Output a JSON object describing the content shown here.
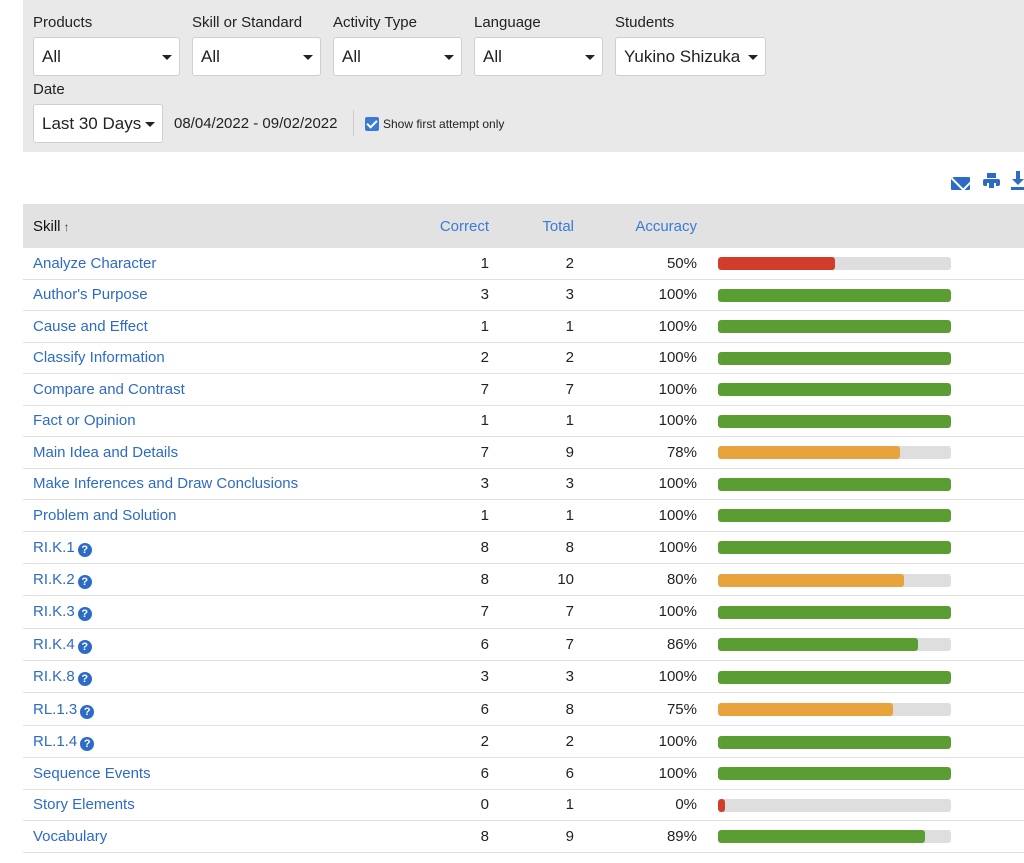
{
  "filters": {
    "products": {
      "label": "Products",
      "value": "All"
    },
    "skill": {
      "label": "Skill or Standard",
      "value": "All"
    },
    "activity": {
      "label": "Activity Type",
      "value": "All"
    },
    "language": {
      "label": "Language",
      "value": "All"
    },
    "students": {
      "label": "Students",
      "value": "Yukino Shizuka"
    },
    "date": {
      "label": "Date",
      "value": "Last 30 Days",
      "range": "08/04/2022 - 09/02/2022"
    },
    "first_attempt": {
      "label": "Show first attempt only",
      "checked": true
    }
  },
  "toolbar": {
    "icons": [
      "mail-icon",
      "print-icon",
      "download-icon"
    ]
  },
  "colors": {
    "accent": "#2d6bc5",
    "bar_green": "#5a9e33",
    "bar_orange": "#e8a33d",
    "bar_red": "#d23c2a",
    "bar_track": "#dedede"
  },
  "table": {
    "headers": {
      "skill": "Skill",
      "correct": "Correct",
      "total": "Total",
      "accuracy": "Accuracy"
    },
    "rows": [
      {
        "skill": "Analyze Character",
        "help": false,
        "correct": "1",
        "total": "2",
        "accuracy": "50%",
        "pct": 50,
        "color": "red"
      },
      {
        "skill": "Author's Purpose",
        "help": false,
        "correct": "3",
        "total": "3",
        "accuracy": "100%",
        "pct": 100,
        "color": "green"
      },
      {
        "skill": "Cause and Effect",
        "help": false,
        "correct": "1",
        "total": "1",
        "accuracy": "100%",
        "pct": 100,
        "color": "green"
      },
      {
        "skill": "Classify Information",
        "help": false,
        "correct": "2",
        "total": "2",
        "accuracy": "100%",
        "pct": 100,
        "color": "green"
      },
      {
        "skill": "Compare and Contrast",
        "help": false,
        "correct": "7",
        "total": "7",
        "accuracy": "100%",
        "pct": 100,
        "color": "green"
      },
      {
        "skill": "Fact or Opinion",
        "help": false,
        "correct": "1",
        "total": "1",
        "accuracy": "100%",
        "pct": 100,
        "color": "green"
      },
      {
        "skill": "Main Idea and Details",
        "help": false,
        "correct": "7",
        "total": "9",
        "accuracy": "78%",
        "pct": 78,
        "color": "orange"
      },
      {
        "skill": "Make Inferences and Draw Conclusions",
        "help": false,
        "correct": "3",
        "total": "3",
        "accuracy": "100%",
        "pct": 100,
        "color": "green"
      },
      {
        "skill": "Problem and Solution",
        "help": false,
        "correct": "1",
        "total": "1",
        "accuracy": "100%",
        "pct": 100,
        "color": "green"
      },
      {
        "skill": "RI.K.1",
        "help": true,
        "correct": "8",
        "total": "8",
        "accuracy": "100%",
        "pct": 100,
        "color": "green"
      },
      {
        "skill": "RI.K.2",
        "help": true,
        "correct": "8",
        "total": "10",
        "accuracy": "80%",
        "pct": 80,
        "color": "orange"
      },
      {
        "skill": "RI.K.3",
        "help": true,
        "correct": "7",
        "total": "7",
        "accuracy": "100%",
        "pct": 100,
        "color": "green"
      },
      {
        "skill": "RI.K.4",
        "help": true,
        "correct": "6",
        "total": "7",
        "accuracy": "86%",
        "pct": 86,
        "color": "green"
      },
      {
        "skill": "RI.K.8",
        "help": true,
        "correct": "3",
        "total": "3",
        "accuracy": "100%",
        "pct": 100,
        "color": "green"
      },
      {
        "skill": "RL.1.3",
        "help": true,
        "correct": "6",
        "total": "8",
        "accuracy": "75%",
        "pct": 75,
        "color": "orange"
      },
      {
        "skill": "RL.1.4",
        "help": true,
        "correct": "2",
        "total": "2",
        "accuracy": "100%",
        "pct": 100,
        "color": "green"
      },
      {
        "skill": "Sequence Events",
        "help": false,
        "correct": "6",
        "total": "6",
        "accuracy": "100%",
        "pct": 100,
        "color": "green"
      },
      {
        "skill": "Story Elements",
        "help": false,
        "correct": "0",
        "total": "1",
        "accuracy": "0%",
        "pct": 0,
        "color": "red"
      },
      {
        "skill": "Vocabulary",
        "help": false,
        "correct": "8",
        "total": "9",
        "accuracy": "89%",
        "pct": 89,
        "color": "green"
      }
    ]
  }
}
